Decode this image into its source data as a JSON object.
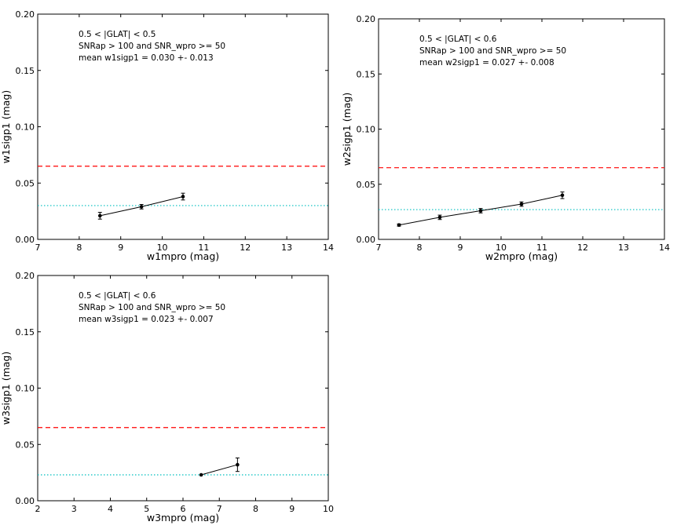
{
  "chart_data": [
    {
      "type": "line",
      "xlabel": "w1mpro (mag)",
      "ylabel": "w1sigp1 (mag)",
      "xlim": [
        7,
        14
      ],
      "ylim": [
        0.0,
        0.2
      ],
      "xticks": [
        7,
        8,
        9,
        10,
        11,
        12,
        13,
        14
      ],
      "yticks": [
        0.0,
        0.05,
        0.1,
        0.15,
        0.2
      ],
      "xtick_labels": [
        "7",
        "8",
        "9",
        "10",
        "11",
        "12",
        "13",
        "14"
      ],
      "ytick_labels": [
        "0.00",
        "0.05",
        "0.10",
        "0.15",
        "0.20"
      ],
      "grid": false,
      "annotations": [
        "0.5 < |GLAT| < 0.5",
        "SNRap > 100 and  SNR_wpro >= 50",
        "mean w1sigp1 = 0.030 +- 0.013"
      ],
      "series": [
        {
          "x": [
            8.5,
            9.5,
            10.5
          ],
          "y": [
            0.021,
            0.029,
            0.038
          ],
          "yerr": [
            0.003,
            0.002,
            0.003
          ],
          "color": "#000000",
          "marker": "circle"
        }
      ],
      "reference_lines": [
        {
          "y": 0.065,
          "style": "dashed",
          "color": "#ff0000"
        },
        {
          "y": 0.03,
          "style": "dotted",
          "color": "#00bfbf"
        }
      ]
    },
    {
      "type": "line",
      "xlabel": "w2mpro (mag)",
      "ylabel": "w2sigp1 (mag)",
      "xlim": [
        7,
        14
      ],
      "ylim": [
        0.0,
        0.2
      ],
      "xticks": [
        7,
        8,
        9,
        10,
        11,
        12,
        13,
        14
      ],
      "yticks": [
        0.0,
        0.05,
        0.1,
        0.15,
        0.2
      ],
      "xtick_labels": [
        "7",
        "8",
        "9",
        "10",
        "11",
        "12",
        "13",
        "14"
      ],
      "ytick_labels": [
        "0.00",
        "0.05",
        "0.10",
        "0.15",
        "0.20"
      ],
      "grid": false,
      "annotations": [
        "0.5 < |GLAT| < 0.6",
        "SNRap > 100 and  SNR_wpro >= 50",
        "mean w2sigp1 = 0.027 +- 0.008"
      ],
      "series": [
        {
          "x": [
            7.5,
            8.5,
            9.5,
            10.5,
            11.5
          ],
          "y": [
            0.013,
            0.02,
            0.026,
            0.032,
            0.04
          ],
          "yerr": [
            0.001,
            0.002,
            0.002,
            0.002,
            0.003
          ],
          "color": "#000000",
          "marker": "circle"
        }
      ],
      "reference_lines": [
        {
          "y": 0.065,
          "style": "dashed",
          "color": "#ff0000"
        },
        {
          "y": 0.027,
          "style": "dotted",
          "color": "#00bfbf"
        }
      ]
    },
    {
      "type": "line",
      "xlabel": "w3mpro (mag)",
      "ylabel": "w3sigp1 (mag)",
      "xlim": [
        2,
        10
      ],
      "ylim": [
        0.0,
        0.2
      ],
      "xticks": [
        2,
        3,
        4,
        5,
        6,
        7,
        8,
        9,
        10
      ],
      "yticks": [
        0.0,
        0.05,
        0.1,
        0.15,
        0.2
      ],
      "xtick_labels": [
        "2",
        "3",
        "4",
        "5",
        "6",
        "7",
        "8",
        "9",
        "10"
      ],
      "ytick_labels": [
        "0.00",
        "0.05",
        "0.10",
        "0.15",
        "0.20"
      ],
      "grid": false,
      "annotations": [
        "0.5 < |GLAT| < 0.6",
        "SNRap > 100 and  SNR_wpro >= 50",
        "mean w3sigp1 = 0.023 +- 0.007"
      ],
      "series": [
        {
          "x": [
            6.5,
            7.5
          ],
          "y": [
            0.023,
            0.032
          ],
          "yerr": [
            0.0,
            0.006
          ],
          "color": "#000000",
          "marker": "circle"
        }
      ],
      "reference_lines": [
        {
          "y": 0.065,
          "style": "dashed",
          "color": "#ff0000"
        },
        {
          "y": 0.023,
          "style": "dotted",
          "color": "#00bfbf"
        }
      ]
    }
  ]
}
